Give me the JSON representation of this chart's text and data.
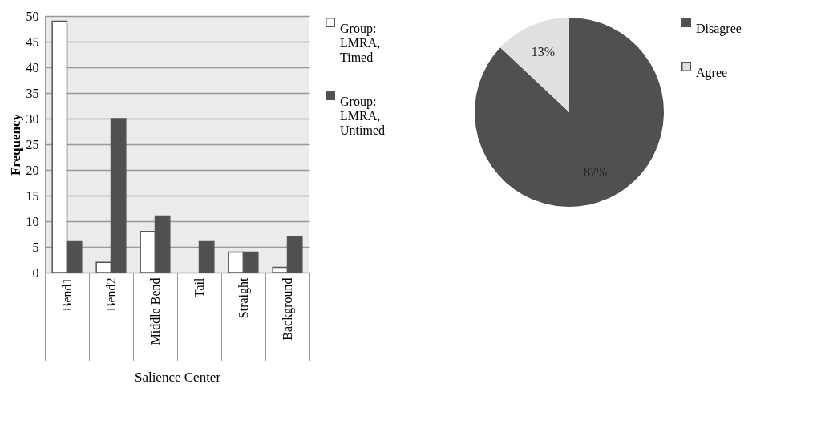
{
  "chart_data": [
    {
      "type": "bar",
      "xlabel": "Salience Center",
      "ylabel": "Frequency",
      "categories": [
        "Bend1",
        "Bend2",
        "Middle Bend",
        "Tail",
        "Straight",
        "Background"
      ],
      "series": [
        {
          "name": "Group: LMRA, Timed",
          "color": "#ffffff",
          "values": [
            49,
            2,
            8,
            null,
            4,
            1
          ]
        },
        {
          "name": "Group: LMRA, Untimed",
          "color": "#505050",
          "values": [
            6,
            30,
            11,
            6,
            4,
            7
          ]
        }
      ],
      "ylim": [
        0,
        50
      ],
      "yticks": [
        0,
        5,
        10,
        15,
        20,
        25,
        30,
        35,
        40,
        45,
        50
      ],
      "grid": "y",
      "legend": "right"
    },
    {
      "type": "pie",
      "categories": [
        "Disagree",
        "Agree"
      ],
      "values": [
        87,
        13
      ],
      "colors": [
        "#505050",
        "#e0e0e0"
      ],
      "value_labels": [
        "87%",
        "13%"
      ],
      "legend": "right"
    }
  ]
}
